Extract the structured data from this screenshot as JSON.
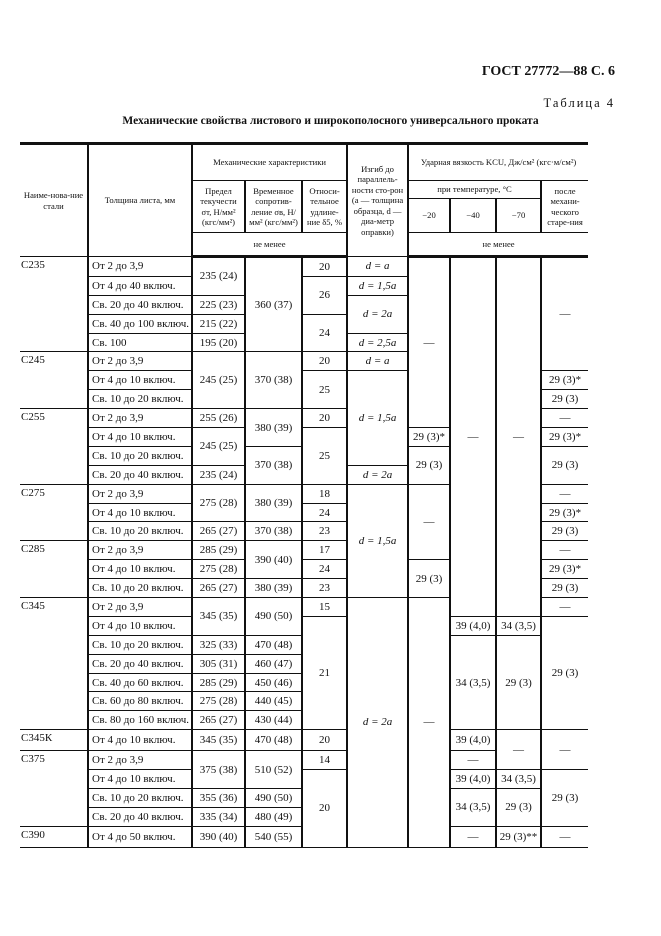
{
  "header": {
    "doc_id": "ГОСТ 27772—88 С. 6",
    "table_no": "Таблица 4"
  },
  "caption": "Механические свойства листового и широкополосного универсального проката",
  "columns": {
    "steel": "Наиме-нова-ние стали",
    "thickness": "Толщина листа, мм",
    "mech": "Механические характеристики",
    "yield": "Предел текучести σт, Н/мм² (кгс/мм²)",
    "tensile": "Временное сопротив-ление σв, Н/мм² (кгс/мм²)",
    "elong": "Относи-тельное удлине-ние δ5, %",
    "bend": "Изгиб до параллель-ности сто-рон (a — толщина образца, d — диа-метр оправки)",
    "kcu": "Ударная вязкость KCU, Дж/см² (кгс·м/см²)",
    "temp": "при температуре, °C",
    "t20": "−20",
    "t40": "−40",
    "t70": "−70",
    "aged": "после механи-ческого старе-ния",
    "not_less_1": "не менее",
    "not_less_2": "не менее"
  },
  "rows": [
    [
      [
        "С235",
        5
      ],
      [
        "От 2 до 3,9",
        1
      ],
      [
        "235 (24)",
        2
      ],
      [
        "360 (37)",
        5
      ],
      [
        "20",
        1
      ],
      [
        "d = a",
        1
      ],
      [
        "—",
        9
      ],
      [
        "—",
        19
      ],
      [
        "—",
        19
      ],
      [
        "—",
        6
      ]
    ],
    [
      [
        "От 4 до 40 включ.",
        1
      ],
      [
        "26",
        2
      ],
      [
        "d = 1,5a",
        1
      ]
    ],
    [
      [
        "Св. 20 до 40 включ.",
        1
      ],
      [
        "225 (23)",
        1
      ],
      [
        "d = 2a",
        2
      ]
    ],
    [
      [
        "Св. 40 до 100 включ.",
        1
      ],
      [
        "215 (22)",
        1
      ],
      [
        "24",
        2
      ]
    ],
    [
      [
        "Св. 100",
        1
      ],
      [
        "195 (20)",
        1
      ],
      [
        "d = 2,5a",
        1
      ]
    ],
    [
      [
        "С245",
        3
      ],
      [
        "От 2 до 3,9",
        1
      ],
      [
        "245 (25)",
        3
      ],
      [
        "370 (38)",
        3
      ],
      [
        "20",
        1
      ],
      [
        "d = a",
        1
      ]
    ],
    [
      [
        "От 4 до 10 включ.",
        1
      ],
      [
        "25",
        2
      ],
      [
        "d = 1,5a",
        5
      ],
      [
        "29 (3)*",
        1
      ]
    ],
    [
      [
        "Св. 10 до 20 включ.",
        1
      ],
      [
        "29 (3)",
        1
      ]
    ],
    [
      [
        "С255",
        4
      ],
      [
        "От 2 до 3,9",
        1
      ],
      [
        "255 (26)",
        1
      ],
      [
        "380 (39)",
        2
      ],
      [
        "20",
        1
      ],
      [
        "—",
        1
      ]
    ],
    [
      [
        "От 4 до 10 включ.",
        1
      ],
      [
        "245 (25)",
        2
      ],
      [
        "25",
        3
      ],
      [
        "29 (3)*",
        1
      ],
      [
        "29 (3)*",
        1
      ]
    ],
    [
      [
        "Св. 10 до 20 включ.",
        1
      ],
      [
        "370 (38)",
        2
      ],
      [
        "29 (3)",
        2
      ],
      [
        "29 (3)",
        2
      ]
    ],
    [
      [
        "Св. 20 до 40 включ.",
        1
      ],
      [
        "235 (24)",
        1
      ],
      [
        "d = 2a",
        1
      ]
    ],
    [
      [
        "С275",
        3
      ],
      [
        "От 2 до 3,9",
        1
      ],
      [
        "275 (28)",
        2
      ],
      [
        "380 (39)",
        2
      ],
      [
        "18",
        1
      ],
      [
        "d = 1,5a",
        6
      ],
      [
        "—",
        4
      ],
      [
        "—",
        1
      ]
    ],
    [
      [
        "От 4 до 10 включ.",
        1
      ],
      [
        "24",
        1
      ],
      [
        "29 (3)*",
        1
      ]
    ],
    [
      [
        "Св. 10 до 20 включ.",
        1
      ],
      [
        "265 (27)",
        1
      ],
      [
        "370 (38)",
        1
      ],
      [
        "23",
        1
      ],
      [
        "29 (3)",
        1
      ]
    ],
    [
      [
        "С285",
        3
      ],
      [
        "От 2 до 3,9",
        1
      ],
      [
        "285 (29)",
        1
      ],
      [
        "390 (40)",
        2
      ],
      [
        "17",
        1
      ],
      [
        "—",
        1
      ]
    ],
    [
      [
        "От 4 до 10 включ.",
        1
      ],
      [
        "275 (28)",
        1
      ],
      [
        "24",
        1
      ],
      [
        "29 (3)",
        2
      ],
      [
        "29 (3)*",
        1
      ]
    ],
    [
      [
        "Св. 10 до 20 включ.",
        1
      ],
      [
        "265 (27)",
        1
      ],
      [
        "380 (39)",
        1
      ],
      [
        "23",
        1
      ],
      [
        "29 (3)",
        1
      ]
    ],
    [
      [
        "С345",
        7
      ],
      [
        "От 2 до 3,9",
        1
      ],
      [
        "345 (35)",
        2
      ],
      [
        "490 (50)",
        2
      ],
      [
        "15",
        1
      ],
      [
        "d = 2a",
        13
      ],
      [
        "—",
        13
      ],
      [
        "—",
        1
      ]
    ],
    [
      [
        "От 4 до 10 включ.",
        1
      ],
      [
        "21",
        6
      ],
      [
        "39 (4,0)",
        1
      ],
      [
        "34 (3,5)",
        1
      ],
      [
        "29 (3)",
        6
      ]
    ],
    [
      [
        "Св. 10 до 20 включ.",
        1
      ],
      [
        "325 (33)",
        1
      ],
      [
        "470 (48)",
        1
      ],
      [
        "34 (3,5)",
        5
      ],
      [
        "29 (3)",
        5
      ]
    ],
    [
      [
        "Св. 20 до 40 включ.",
        1
      ],
      [
        "305 (31)",
        1
      ],
      [
        "460 (47)",
        1
      ]
    ],
    [
      [
        "Св. 40 до 60 включ.",
        1
      ],
      [
        "285 (29)",
        1
      ],
      [
        "450 (46)",
        1
      ]
    ],
    [
      [
        "Св. 60 до 80 включ.",
        1
      ],
      [
        "275 (28)",
        1
      ],
      [
        "440 (45)",
        1
      ]
    ],
    [
      [
        "Св. 80 до 160 включ.",
        1
      ],
      [
        "265 (27)",
        1
      ],
      [
        "430 (44)",
        1
      ]
    ],
    [
      [
        "С345К",
        1
      ],
      [
        "От 4 до 10 включ.",
        1
      ],
      [
        "345 (35)",
        1
      ],
      [
        "470 (48)",
        1
      ],
      [
        "20",
        1
      ],
      [
        "39 (4,0)",
        1
      ],
      [
        "—",
        2
      ],
      [
        "—",
        2
      ]
    ],
    [
      [
        "С375",
        4
      ],
      [
        "От 2 до 3,9",
        1
      ],
      [
        "375 (38)",
        2
      ],
      [
        "510 (52)",
        2
      ],
      [
        "14",
        1
      ],
      [
        "—",
        1
      ]
    ],
    [
      [
        "От 4 до 10 включ.",
        1
      ],
      [
        "20",
        4
      ],
      [
        "39 (4,0)",
        1
      ],
      [
        "34 (3,5)",
        1
      ],
      [
        "29 (3)",
        3
      ]
    ],
    [
      [
        "Св. 10 до 20 включ.",
        1
      ],
      [
        "355 (36)",
        1
      ],
      [
        "490 (50)",
        1
      ],
      [
        "34 (3,5)",
        2
      ],
      [
        "29 (3)",
        2
      ]
    ],
    [
      [
        "Св. 20 до 40 включ.",
        1
      ],
      [
        "335 (34)",
        1
      ],
      [
        "480 (49)",
        1
      ]
    ],
    [
      [
        "С390",
        1
      ],
      [
        "От 4 до 50 включ.",
        1
      ],
      [
        "390 (40)",
        1
      ],
      [
        "540 (55)",
        1
      ],
      [
        "—",
        1
      ],
      [
        "29 (3)**",
        1
      ],
      [
        "—",
        1
      ]
    ]
  ]
}
